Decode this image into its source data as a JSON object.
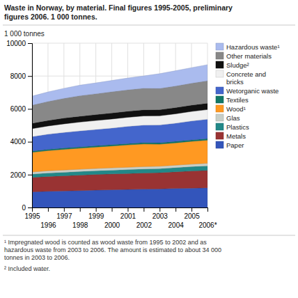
{
  "chart_data": {
    "type": "area",
    "stacked": true,
    "title": "Waste in Norway, by material. Final figures 1995-2005, preliminary\nfigures 2006. 1 000 tonnes.",
    "ylabel": "1 000 tonnes",
    "x": [
      1995,
      1996,
      1997,
      1998,
      1999,
      2000,
      2001,
      2002,
      2003,
      2004,
      2005,
      2006
    ],
    "xlim": [
      1995,
      2006
    ],
    "xticks": [
      1995,
      1996,
      1997,
      1998,
      1999,
      2000,
      2001,
      2002,
      2003,
      2004,
      2005,
      {
        "value": 2006,
        "label": "2006*"
      }
    ],
    "ylim": [
      0,
      10000
    ],
    "yticks": [
      0,
      2000,
      4000,
      6000,
      8000,
      10000
    ],
    "grid": true,
    "legend": "right",
    "annotations": [
      "¹ Impregnated wood is counted as wood waste from 1995 to 2002 and as\nhazardous waste from 2003 to 2006. The amount is estimated to about 34 000\ntonnes in 2003 to 2006.",
      "² Included water."
    ],
    "series": [
      {
        "name": "Paper",
        "color": "#3355bb",
        "values": [
          950,
          990,
          1010,
          1030,
          1060,
          1080,
          1100,
          1120,
          1130,
          1160,
          1180,
          1200
        ]
      },
      {
        "name": "Metals",
        "color": "#993333",
        "values": [
          880,
          900,
          920,
          940,
          950,
          960,
          970,
          980,
          990,
          1010,
          1040,
          1060
        ]
      },
      {
        "name": "Plastics",
        "color": "#228888",
        "values": [
          200,
          210,
          215,
          220,
          225,
          230,
          235,
          240,
          245,
          255,
          265,
          275
        ]
      },
      {
        "name": "Glas",
        "color": "#c8cfc8",
        "values": [
          130,
          133,
          136,
          138,
          140,
          142,
          144,
          146,
          148,
          150,
          152,
          155
        ]
      },
      {
        "name": "Wood¹",
        "color": "#ff9922",
        "values": [
          1200,
          1230,
          1260,
          1280,
          1300,
          1330,
          1360,
          1380,
          1340,
          1360,
          1390,
          1410
        ]
      },
      {
        "name": "Textiles",
        "color": "#117766",
        "values": [
          75,
          77,
          79,
          81,
          82,
          83,
          84,
          85,
          86,
          87,
          88,
          90
        ]
      },
      {
        "name": "Wetorganic waste",
        "color": "#4466cc",
        "values": [
          880,
          920,
          950,
          970,
          990,
          1010,
          1040,
          1060,
          1080,
          1110,
          1150,
          1180
        ]
      },
      {
        "name": "Concrete and\nbricks",
        "color": "#f0f0f0",
        "values": [
          480,
          500,
          520,
          540,
          545,
          550,
          555,
          560,
          560,
          570,
          580,
          590
        ]
      },
      {
        "name": "Sludge²",
        "color": "#111111",
        "values": [
          330,
          340,
          350,
          355,
          360,
          365,
          370,
          375,
          375,
          380,
          385,
          390
        ]
      },
      {
        "name": "Other materials",
        "color": "#888888",
        "values": [
          1100,
          1150,
          1200,
          1250,
          1270,
          1290,
          1300,
          1310,
          1290,
          1310,
          1330,
          1360
        ]
      },
      {
        "name": "Hazardous waste¹",
        "color": "#aabbee",
        "values": [
          550,
          580,
          610,
          640,
          660,
          690,
          720,
          750,
          900,
          930,
          950,
          980
        ]
      }
    ]
  }
}
